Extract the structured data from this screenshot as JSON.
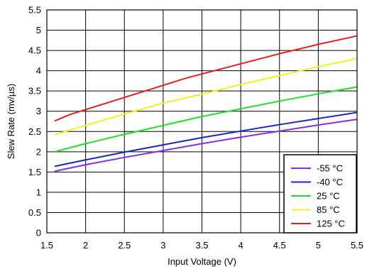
{
  "chart_data": {
    "type": "line",
    "title": "",
    "xlabel": "Input Voltage (V)",
    "ylabel": "Slew Rate (mv/µs)",
    "xlim": [
      1.5,
      5.5
    ],
    "ylim": [
      0,
      5.5
    ],
    "x_ticks": [
      "1.5",
      "2",
      "2.5",
      "3",
      "3.5",
      "4",
      "4.5",
      "5",
      "5.5"
    ],
    "y_ticks": [
      "0",
      "0.5",
      "1",
      "1.5",
      "2",
      "2.5",
      "3",
      "3.5",
      "4",
      "4.5",
      "5",
      "5.5"
    ],
    "grid": true,
    "legend_position": "bottom-right",
    "series": [
      {
        "name": "-55 °C",
        "color": "#8b2be2",
        "x": [
          1.6,
          2.0,
          2.5,
          3.0,
          3.5,
          4.0,
          4.5,
          5.0,
          5.5
        ],
        "y": [
          1.52,
          1.68,
          1.86,
          2.03,
          2.2,
          2.36,
          2.51,
          2.66,
          2.8
        ]
      },
      {
        "name": "-40 °C",
        "color": "#1428c8",
        "x": [
          1.6,
          2.0,
          2.5,
          3.0,
          3.5,
          4.0,
          4.5,
          5.0,
          5.5
        ],
        "y": [
          1.64,
          1.8,
          1.99,
          2.17,
          2.35,
          2.51,
          2.67,
          2.82,
          2.97
        ]
      },
      {
        "name": "25 °C",
        "color": "#22e022",
        "x": [
          1.6,
          2.0,
          2.5,
          3.0,
          3.5,
          4.0,
          4.5,
          5.0,
          5.5
        ],
        "y": [
          2.0,
          2.2,
          2.43,
          2.65,
          2.87,
          3.06,
          3.25,
          3.43,
          3.6
        ]
      },
      {
        "name": "85 °C",
        "color": "#f2f21a",
        "x": [
          1.6,
          2.0,
          2.5,
          3.0,
          3.5,
          4.0,
          4.5,
          5.0,
          5.5
        ],
        "y": [
          2.42,
          2.65,
          2.93,
          3.2,
          3.42,
          3.66,
          3.88,
          4.1,
          4.3
        ]
      },
      {
        "name": "125 °C",
        "color": "#e61e1e",
        "x": [
          1.6,
          1.8,
          2.0,
          2.5,
          3.0,
          3.3,
          3.5,
          4.0,
          4.5,
          5.0,
          5.5
        ],
        "y": [
          2.76,
          2.92,
          3.04,
          3.34,
          3.64,
          3.82,
          3.92,
          4.17,
          4.42,
          4.65,
          4.86
        ]
      }
    ]
  }
}
